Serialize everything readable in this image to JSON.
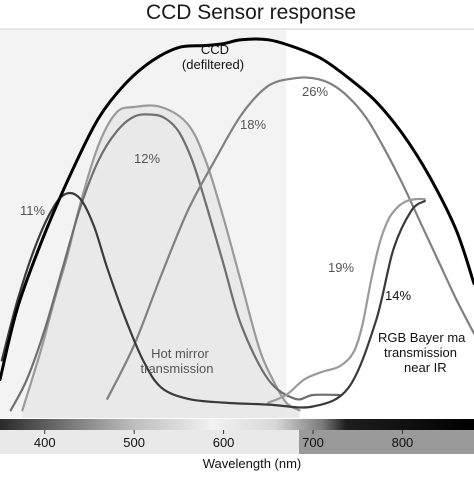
{
  "chart_data": {
    "type": "line",
    "title": "CCD Sensor response",
    "xlabel": "Wavelength (nm)",
    "ylabel": "",
    "xlim": [
      350,
      880
    ],
    "ylim": [
      0,
      1
    ],
    "x_ticks": [
      400,
      500,
      600,
      700,
      800
    ],
    "x_tick_labels": [
      "400",
      "500",
      "600",
      "700",
      "800"
    ],
    "grid": false,
    "annotations": [
      {
        "id": "ccd-line1",
        "text": "CCD"
      },
      {
        "id": "ccd-line2",
        "text": "(defiltered)"
      },
      {
        "id": "hot-line1",
        "text": "Hot mirror"
      },
      {
        "id": "hot-line2",
        "text": "transmission"
      },
      {
        "id": "bayer-line1",
        "text": "RGB Bayer ma"
      },
      {
        "id": "bayer-line2",
        "text": "transmission"
      },
      {
        "id": "bayer-line3",
        "text": "near IR"
      }
    ],
    "series": [
      {
        "key": "ccd",
        "color": "#000000",
        "stroke": 3,
        "label_text": "",
        "x": [
          350,
          370,
          400,
          430,
          460,
          490,
          520,
          550,
          580,
          600,
          620,
          650,
          680,
          710,
          740,
          770,
          800,
          830,
          860,
          880
        ],
        "y": [
          0.1,
          0.29,
          0.48,
          0.64,
          0.78,
          0.87,
          0.93,
          0.965,
          0.97,
          0.975,
          0.985,
          0.985,
          0.965,
          0.935,
          0.885,
          0.825,
          0.74,
          0.63,
          0.49,
          0.35
        ]
      },
      {
        "key": "blue",
        "color": "#3a3a3a",
        "stroke": 2.2,
        "label_text": "11%",
        "x": [
          352,
          370,
          390,
          410,
          425,
          440,
          455,
          470,
          490,
          510,
          530,
          560,
          600,
          650,
          700,
          740,
          770,
          790,
          810,
          825
        ],
        "y": [
          0.15,
          0.31,
          0.45,
          0.55,
          0.585,
          0.57,
          0.5,
          0.39,
          0.26,
          0.15,
          0.08,
          0.05,
          0.04,
          0.035,
          0.03,
          0.08,
          0.25,
          0.44,
          0.54,
          0.565
        ]
      },
      {
        "key": "green",
        "color": "#6e6e6e",
        "stroke": 2.2,
        "label_text": "12%",
        "x": [
          362,
          380,
          400,
          420,
          440,
          460,
          480,
          500,
          520,
          535,
          550,
          565,
          580,
          600,
          620,
          650,
          680,
          700,
          730
        ],
        "y": [
          0.02,
          0.1,
          0.23,
          0.39,
          0.55,
          0.67,
          0.745,
          0.785,
          0.79,
          0.78,
          0.745,
          0.67,
          0.56,
          0.4,
          0.24,
          0.1,
          0.05,
          0.06,
          0.06
        ]
      },
      {
        "key": "hotmirror",
        "color": "#9a9a9a",
        "stroke": 2.2,
        "label_text": "18%",
        "x": [
          375,
          395,
          410,
          425,
          440,
          460,
          480,
          500,
          530,
          560,
          580,
          600,
          620,
          640,
          655,
          670,
          685
        ],
        "y": [
          0.02,
          0.17,
          0.3,
          0.42,
          0.56,
          0.71,
          0.795,
          0.81,
          0.81,
          0.765,
          0.67,
          0.52,
          0.35,
          0.18,
          0.1,
          0.04,
          0.02
        ]
      },
      {
        "key": "red",
        "color": "#808080",
        "stroke": 2.2,
        "label_text": "26%",
        "x": [
          470,
          500,
          530,
          560,
          590,
          620,
          650,
          680,
          700,
          720,
          740,
          760,
          780,
          800,
          820,
          840,
          860,
          880
        ],
        "y": [
          0.05,
          0.19,
          0.37,
          0.54,
          0.67,
          0.79,
          0.865,
          0.885,
          0.885,
          0.87,
          0.835,
          0.78,
          0.7,
          0.61,
          0.51,
          0.41,
          0.31,
          0.22
        ]
      },
      {
        "key": "nir",
        "color": "#9a9a9a",
        "stroke": 2.2,
        "label_text": "19%",
        "x": [
          650,
          670,
          690,
          710,
          730,
          745,
          755,
          765,
          775,
          785,
          795,
          805,
          815,
          825
        ],
        "y": [
          0.04,
          0.06,
          0.1,
          0.12,
          0.135,
          0.17,
          0.24,
          0.36,
          0.46,
          0.52,
          0.55,
          0.565,
          0.57,
          0.57
        ]
      }
    ]
  }
}
